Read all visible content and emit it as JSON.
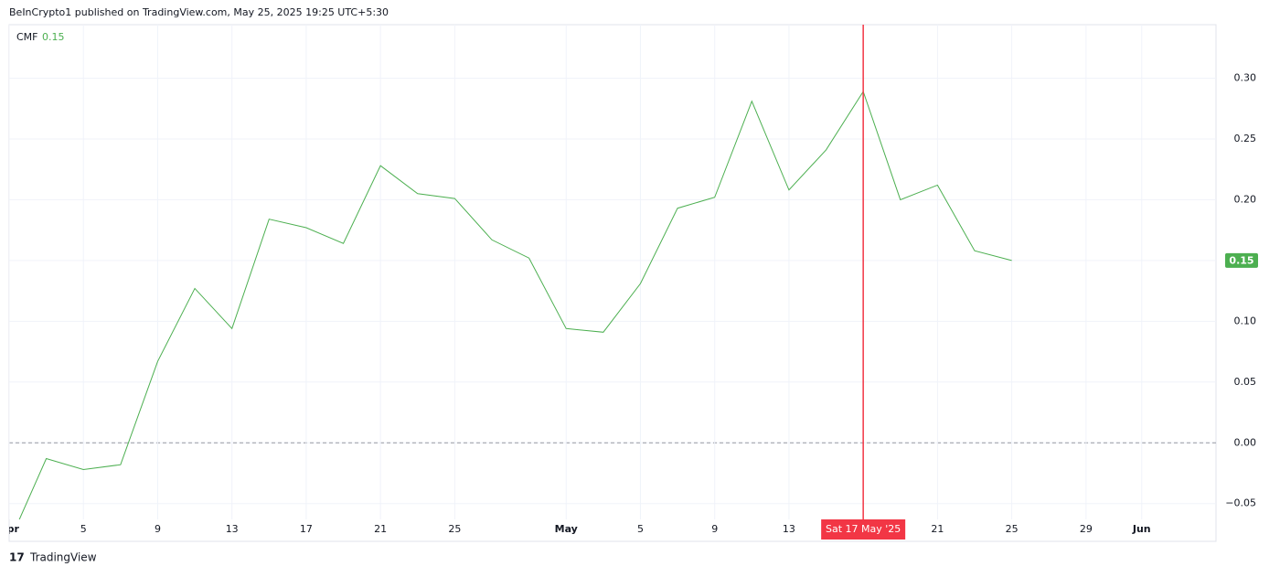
{
  "header": "BeInCrypto1 published on TradingView.com, May 25, 2025 19:25 UTC+5:30",
  "footer": "TradingView",
  "chart_data": {
    "type": "line",
    "indicator": "CMF",
    "x": [
      "2025-04-01",
      "2025-04-03",
      "2025-04-05",
      "2025-04-07",
      "2025-04-09",
      "2025-04-11",
      "2025-04-13",
      "2025-04-15",
      "2025-04-17",
      "2025-04-19",
      "2025-04-21",
      "2025-04-23",
      "2025-04-25",
      "2025-04-27",
      "2025-04-29",
      "2025-05-01",
      "2025-05-03",
      "2025-05-05",
      "2025-05-07",
      "2025-05-09",
      "2025-05-11",
      "2025-05-13",
      "2025-05-15",
      "2025-05-17",
      "2025-05-19",
      "2025-05-21",
      "2025-05-23",
      "2025-05-25"
    ],
    "series": [
      {
        "name": "CMF",
        "color": "#4caf50",
        "values": [
          -0.082,
          -0.013,
          -0.022,
          -0.018,
          0.067,
          0.127,
          0.094,
          0.184,
          0.177,
          0.164,
          0.228,
          0.205,
          0.201,
          0.167,
          0.152,
          0.094,
          0.091,
          0.131,
          0.193,
          0.202,
          0.281,
          0.208,
          0.241,
          0.289,
          0.2,
          0.212,
          0.158,
          0.15
        ]
      }
    ],
    "xlim": [
      "2025-04-01",
      "2025-06-05"
    ],
    "xticks": [
      {
        "value": "2025-04-01",
        "label": "Apr"
      },
      {
        "value": "2025-04-05",
        "label": "5"
      },
      {
        "value": "2025-04-09",
        "label": "9"
      },
      {
        "value": "2025-04-13",
        "label": "13"
      },
      {
        "value": "2025-04-17",
        "label": "17"
      },
      {
        "value": "2025-04-21",
        "label": "21"
      },
      {
        "value": "2025-04-25",
        "label": "25"
      },
      {
        "value": "2025-05-01",
        "label": "May"
      },
      {
        "value": "2025-05-05",
        "label": "5"
      },
      {
        "value": "2025-05-09",
        "label": "9"
      },
      {
        "value": "2025-05-13",
        "label": "13"
      },
      {
        "value": "2025-05-17",
        "label": "17"
      },
      {
        "value": "2025-05-21",
        "label": "21"
      },
      {
        "value": "2025-05-25",
        "label": "25"
      },
      {
        "value": "2025-05-29",
        "label": "29"
      },
      {
        "value": "2025-06-01",
        "label": "Jun"
      }
    ],
    "ylim": [
      -0.063,
      0.344
    ],
    "yticks": [
      {
        "value": -0.05,
        "label": "−0.05"
      },
      {
        "value": 0,
        "label": "0.00"
      },
      0.05,
      {
        "value": 0.1,
        "label": "0.10"
      },
      0.15,
      {
        "value": 0.2,
        "label": "0.20"
      },
      0.25,
      {
        "value": 0.3,
        "label": "0.30"
      }
    ],
    "grid": true,
    "crosshair": {
      "x": "2025-05-17",
      "label": "Sat 17 May '25",
      "color": "#f23645"
    }
  }
}
